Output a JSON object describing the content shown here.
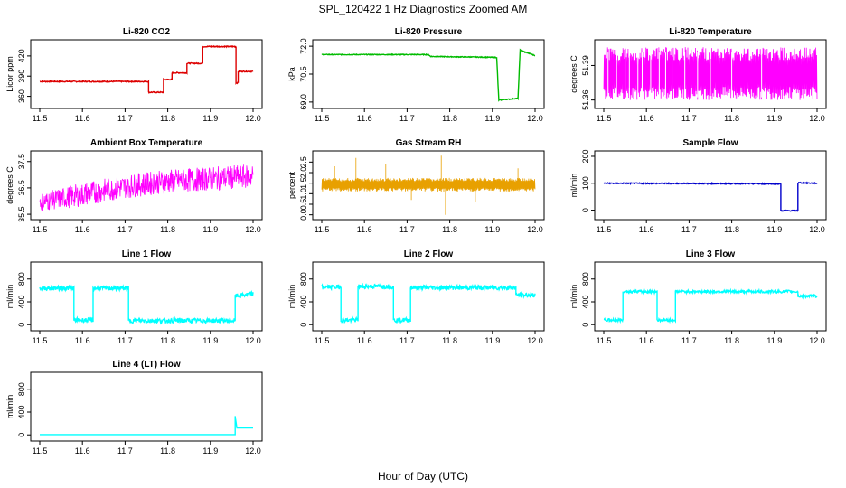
{
  "main_title": "SPL_120422  1 Hz Diagnostics Zoomed AM",
  "xlabel": "Hour of Day (UTC)",
  "chart_data": [
    {
      "type": "line",
      "title": "Li-820 CO2",
      "ylabel": "Licor ppm",
      "color": "#dd0000",
      "xlim": [
        11.5,
        12.0
      ],
      "xticks": [
        "11.5",
        "11.6",
        "11.7",
        "11.8",
        "11.9",
        "12.0"
      ],
      "ylim": [
        346,
        440
      ],
      "yticks": [
        "360",
        "390",
        "420"
      ],
      "series": [
        {
          "noise": 0.8,
          "points": [
            [
              11.5,
              382
            ],
            [
              11.755,
              382
            ],
            [
              11.755,
              366
            ],
            [
              11.79,
              366
            ],
            [
              11.79,
              385
            ],
            [
              11.81,
              385
            ],
            [
              11.81,
              395
            ],
            [
              11.845,
              395
            ],
            [
              11.845,
              409
            ],
            [
              11.882,
              409
            ],
            [
              11.882,
              434
            ],
            [
              11.96,
              434
            ],
            [
              11.96,
              380
            ],
            [
              11.965,
              380
            ],
            [
              11.965,
              397
            ],
            [
              12.0,
              397
            ]
          ]
        }
      ]
    },
    {
      "type": "line",
      "title": "Li-820 Pressure",
      "ylabel": "kPa",
      "color": "#00bb00",
      "xlim": [
        11.5,
        12.0
      ],
      "xticks": [
        "11.5",
        "11.6",
        "11.7",
        "11.8",
        "11.9",
        "12.0"
      ],
      "ylim": [
        68.8,
        72.2
      ],
      "yticks": [
        "69.0",
        "70.5",
        "72.0"
      ],
      "series": [
        {
          "noise": 0.02,
          "points": [
            [
              11.5,
              71.55
            ],
            [
              11.75,
              71.55
            ],
            [
              11.755,
              71.45
            ],
            [
              11.85,
              71.42
            ],
            [
              11.91,
              71.4
            ],
            [
              11.915,
              69.1
            ],
            [
              11.96,
              69.2
            ],
            [
              11.965,
              71.8
            ],
            [
              11.975,
              71.7
            ],
            [
              12.0,
              71.5
            ]
          ]
        }
      ]
    },
    {
      "type": "line",
      "title": "Li-820 Temperature",
      "ylabel": "degrees C",
      "color": "#ff00ff",
      "xlim": [
        11.5,
        12.0
      ],
      "xticks": [
        "11.5",
        "11.6",
        "11.7",
        "11.8",
        "11.9",
        "12.0"
      ],
      "ylim": [
        51.355,
        51.41
      ],
      "yticks": [
        "51.36",
        "51.39"
      ],
      "series": [
        {
          "band": [
            51.36,
            51.406
          ],
          "gaps": [
            11.51,
            11.53,
            11.55,
            11.56,
            11.58,
            11.59,
            11.61,
            11.63,
            11.645,
            11.66,
            11.69,
            11.72,
            11.75,
            11.8,
            11.87
          ]
        }
      ]
    },
    {
      "type": "line",
      "title": "Ambient Box Temperature",
      "ylabel": "degrees C",
      "color": "#ff00ff",
      "xlim": [
        11.5,
        12.0
      ],
      "xticks": [
        "11.5",
        "11.6",
        "11.7",
        "11.8",
        "11.9",
        "12.0"
      ],
      "ylim": [
        35.4,
        37.8
      ],
      "yticks": [
        "35.5",
        "36.5",
        "37.5"
      ],
      "series": [
        {
          "band_trend": [
            [
              11.5,
              35.6,
              36.3
            ],
            [
              11.6,
              35.8,
              36.7
            ],
            [
              11.7,
              36.1,
              37.0
            ],
            [
              11.8,
              36.3,
              37.2
            ],
            [
              11.9,
              36.4,
              37.3
            ],
            [
              12.0,
              36.5,
              37.4
            ]
          ]
        }
      ]
    },
    {
      "type": "line",
      "title": "Gas Stream RH",
      "ylabel": "percent",
      "color": "#e8a000",
      "xlim": [
        11.5,
        12.0
      ],
      "xticks": [
        "11.5",
        "11.6",
        "11.7",
        "11.8",
        "11.9",
        "12.0"
      ],
      "ylim": [
        -0.1,
        2.9
      ],
      "yticks": [
        "0.0",
        "0.5",
        "1.0",
        "1.5",
        "2.0",
        "2.5"
      ],
      "series": [
        {
          "band": [
            1.1,
            1.75
          ],
          "spikes": [
            [
              11.58,
              2.7
            ],
            [
              11.78,
              2.8
            ],
            [
              11.79,
              0.0
            ],
            [
              11.71,
              0.7
            ],
            [
              11.65,
              2.4
            ],
            [
              11.96,
              2.2
            ],
            [
              11.88,
              2.0
            ],
            [
              11.53,
              2.3
            ],
            [
              11.86,
              0.6
            ]
          ]
        }
      ]
    },
    {
      "type": "line",
      "title": "Sample Flow",
      "ylabel": "ml/min",
      "color": "#0000cc",
      "xlim": [
        11.5,
        12.0
      ],
      "xticks": [
        "11.5",
        "11.6",
        "11.7",
        "11.8",
        "11.9",
        "12.0"
      ],
      "ylim": [
        -25,
        210
      ],
      "yticks": [
        "0",
        "100",
        "200"
      ],
      "series": [
        {
          "noise": 2,
          "points": [
            [
              11.5,
              100
            ],
            [
              11.915,
              98
            ],
            [
              11.915,
              -2
            ],
            [
              11.955,
              -2
            ],
            [
              11.955,
              102
            ],
            [
              12.0,
              100
            ]
          ]
        }
      ]
    },
    {
      "type": "line",
      "title": "Line 1 Flow",
      "ylabel": "ml/min",
      "color": "#00ffff",
      "xlim": [
        11.5,
        12.0
      ],
      "xticks": [
        "11.5",
        "11.6",
        "11.7",
        "11.8",
        "11.9",
        "12.0"
      ],
      "ylim": [
        -60,
        1050
      ],
      "yticks": [
        "0",
        "400",
        "800"
      ],
      "series": [
        {
          "noise": 40,
          "points": [
            [
              11.5,
              640
            ],
            [
              11.58,
              640
            ],
            [
              11.58,
              80
            ],
            [
              11.625,
              80
            ],
            [
              11.625,
              640
            ],
            [
              11.708,
              640
            ],
            [
              11.708,
              70
            ],
            [
              11.958,
              70
            ],
            [
              11.958,
              500
            ],
            [
              12.0,
              540
            ]
          ]
        }
      ]
    },
    {
      "type": "line",
      "title": "Line 2 Flow",
      "ylabel": "ml/min",
      "color": "#00ffff",
      "xlim": [
        11.5,
        12.0
      ],
      "xticks": [
        "11.5",
        "11.6",
        "11.7",
        "11.8",
        "11.9",
        "12.0"
      ],
      "ylim": [
        -60,
        1050
      ],
      "yticks": [
        "0",
        "400",
        "800"
      ],
      "series": [
        {
          "noise": 40,
          "points": [
            [
              11.5,
              660
            ],
            [
              11.545,
              660
            ],
            [
              11.545,
              80
            ],
            [
              11.585,
              80
            ],
            [
              11.585,
              670
            ],
            [
              11.668,
              670
            ],
            [
              11.668,
              80
            ],
            [
              11.708,
              80
            ],
            [
              11.708,
              650
            ],
            [
              11.955,
              650
            ],
            [
              11.955,
              520
            ],
            [
              12.0,
              520
            ]
          ]
        }
      ]
    },
    {
      "type": "line",
      "title": "Line 3 Flow",
      "ylabel": "ml/min",
      "color": "#00ffff",
      "xlim": [
        11.5,
        12.0
      ],
      "xticks": [
        "11.5",
        "11.6",
        "11.7",
        "11.8",
        "11.9",
        "12.0"
      ],
      "ylim": [
        -60,
        1050
      ],
      "yticks": [
        "0",
        "400",
        "800"
      ],
      "series": [
        {
          "noise": 25,
          "points": [
            [
              11.5,
              80
            ],
            [
              11.545,
              80
            ],
            [
              11.545,
              580
            ],
            [
              11.625,
              580
            ],
            [
              11.625,
              80
            ],
            [
              11.668,
              80
            ],
            [
              11.668,
              580
            ],
            [
              11.955,
              580
            ],
            [
              11.955,
              500
            ],
            [
              12.0,
              500
            ]
          ]
        }
      ]
    },
    {
      "type": "line",
      "title": "Line 4 (LT) Flow",
      "ylabel": "ml/min",
      "color": "#00ffff",
      "xlim": [
        11.5,
        12.0
      ],
      "xticks": [
        "11.5",
        "11.6",
        "11.7",
        "11.8",
        "11.9",
        "12.0"
      ],
      "ylim": [
        -60,
        1050
      ],
      "yticks": [
        "0",
        "400",
        "800"
      ],
      "series": [
        {
          "noise": 0,
          "points": [
            [
              11.5,
              5
            ],
            [
              11.958,
              5
            ],
            [
              11.958,
              330
            ],
            [
              11.962,
              120
            ],
            [
              12.0,
              120
            ]
          ]
        }
      ]
    }
  ]
}
